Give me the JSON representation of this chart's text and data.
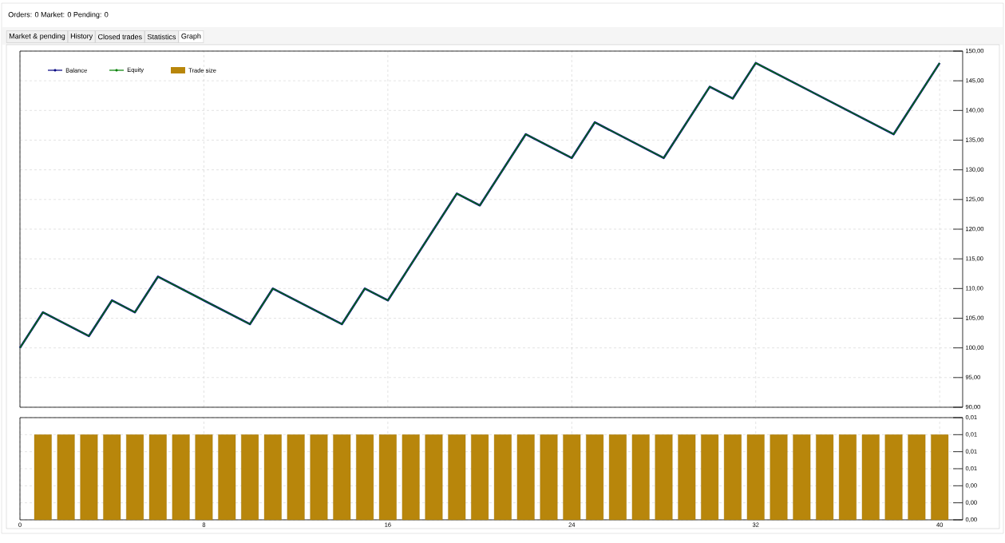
{
  "chart_data": [
    {
      "type": "line",
      "annotations": [
        "Orders: 0   Market: 0   Pending: 0",
        "Market & pending",
        "History",
        "Closed trades",
        "Statistics",
        "Graph"
      ],
      "x": [
        0,
        1,
        3,
        4,
        5,
        6,
        10,
        11,
        14,
        15,
        16,
        19,
        20,
        22,
        24,
        25,
        28,
        30,
        31,
        32,
        38,
        40
      ],
      "series": [
        {
          "name": "Balance",
          "color": "#000080",
          "values": [
            100,
            106,
            102,
            108,
            106,
            112,
            104,
            110,
            104,
            110,
            108,
            126,
            124,
            136,
            132,
            138,
            132,
            144,
            142,
            148,
            136,
            148
          ]
        },
        {
          "name": "Equity",
          "color": "#008000",
          "values": [
            100,
            106,
            102,
            108,
            106,
            112,
            104,
            110,
            104,
            110,
            108,
            126,
            124,
            136,
            132,
            138,
            132,
            144,
            142,
            148,
            136,
            148
          ]
        }
      ],
      "xlim": [
        0,
        41
      ],
      "xticks": [
        0,
        8,
        16,
        24,
        32,
        40
      ],
      "tick_labels": "y",
      "ylim": [
        90,
        150
      ],
      "yticks": [
        {
          "value": 90,
          "label": "90,00"
        },
        {
          "value": 95,
          "label": "95,00"
        },
        {
          "value": 100,
          "label": "100,00"
        },
        {
          "value": 105,
          "label": "105,00"
        },
        {
          "value": 110,
          "label": "110,00"
        },
        {
          "value": 115,
          "label": "115,00"
        },
        {
          "value": 120,
          "label": "120,00"
        },
        {
          "value": 125,
          "label": "125,00"
        },
        {
          "value": 130,
          "label": "130,00"
        },
        {
          "value": 135,
          "label": "135,00"
        },
        {
          "value": 140,
          "label": "140,00"
        },
        {
          "value": 145,
          "label": "145,00"
        },
        {
          "value": 150,
          "label": "150,00"
        }
      ],
      "grid": true,
      "legend": "top left"
    },
    {
      "type": "bar",
      "x": [
        1,
        2,
        3,
        4,
        5,
        6,
        7,
        8,
        9,
        10,
        11,
        12,
        13,
        14,
        15,
        16,
        17,
        18,
        19,
        20,
        21,
        22,
        23,
        24,
        25,
        26,
        27,
        28,
        29,
        30,
        31,
        32,
        33,
        34,
        35,
        36,
        37,
        38,
        39,
        40
      ],
      "series": [
        {
          "name": "Trade size",
          "color": "#b8860b",
          "values": [
            0.01,
            0.01,
            0.01,
            0.01,
            0.01,
            0.01,
            0.01,
            0.01,
            0.01,
            0.01,
            0.01,
            0.01,
            0.01,
            0.01,
            0.01,
            0.01,
            0.01,
            0.01,
            0.01,
            0.01,
            0.01,
            0.01,
            0.01,
            0.01,
            0.01,
            0.01,
            0.01,
            0.01,
            0.01,
            0.01,
            0.01,
            0.01,
            0.01,
            0.01,
            0.01,
            0.01,
            0.01,
            0.01,
            0.01,
            0.01
          ]
        }
      ],
      "xlim": [
        0,
        41
      ],
      "xticks": [
        0,
        8,
        16,
        24,
        32,
        40
      ],
      "ylim": [
        0,
        0.012
      ],
      "yticks": [
        {
          "value": 0,
          "label": "0,00"
        },
        {
          "value": 0.002,
          "label": "0,00"
        },
        {
          "value": 0.004,
          "label": "0,00"
        },
        {
          "value": 0.006,
          "label": "0,01"
        },
        {
          "value": 0.008,
          "label": "0,01"
        },
        {
          "value": 0.01,
          "label": "0,01"
        },
        {
          "value": 0.012,
          "label": "0,01"
        }
      ],
      "grid": true,
      "legend": "top left"
    }
  ]
}
